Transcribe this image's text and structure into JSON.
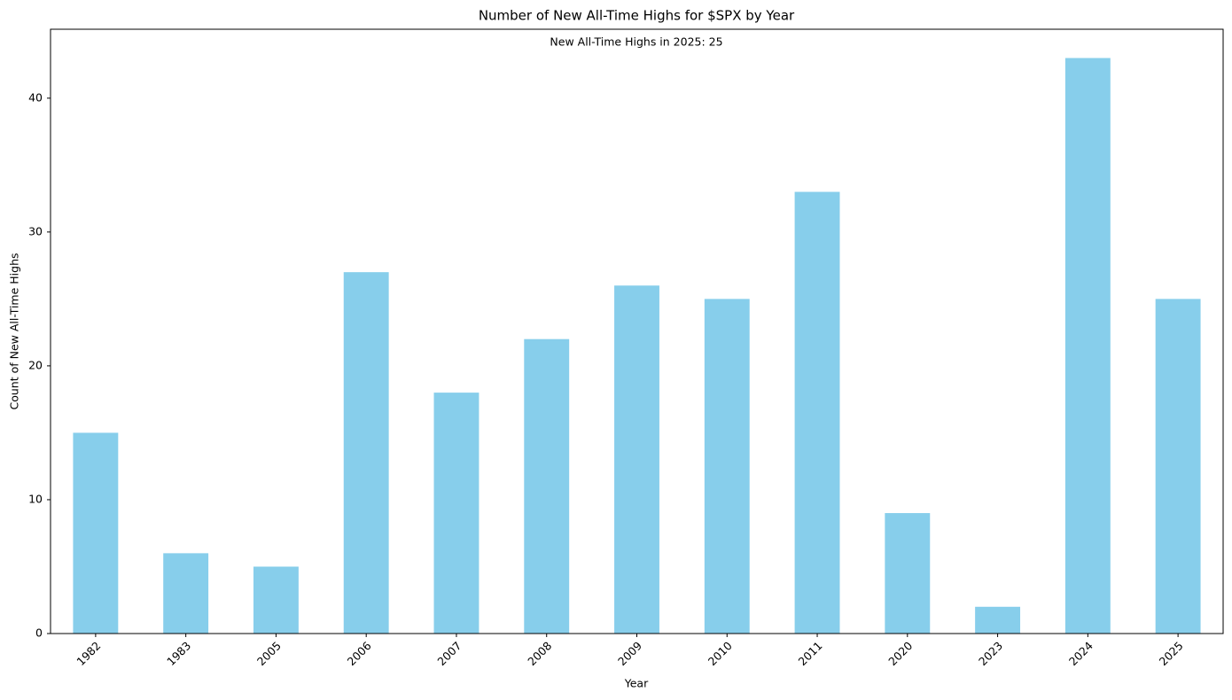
{
  "chart_data": {
    "type": "bar",
    "title": "Number of New All-Time Highs for $SPX by Year",
    "annotation": "New All-Time Highs in 2025: 25",
    "x_label": "Year",
    "y_label": "Count of New All-Time Highs",
    "categories": [
      "1982",
      "1983",
      "2005",
      "2006",
      "2007",
      "2008",
      "2009",
      "2010",
      "2011",
      "2020",
      "2023",
      "2024",
      "2025"
    ],
    "values": [
      15,
      6,
      5,
      27,
      18,
      22,
      26,
      25,
      33,
      9,
      2,
      43,
      25
    ],
    "color": "#87ceeb",
    "ylim": [
      0,
      45.15
    ],
    "yticks": [
      0,
      10,
      20,
      30,
      40
    ],
    "grid": false
  }
}
